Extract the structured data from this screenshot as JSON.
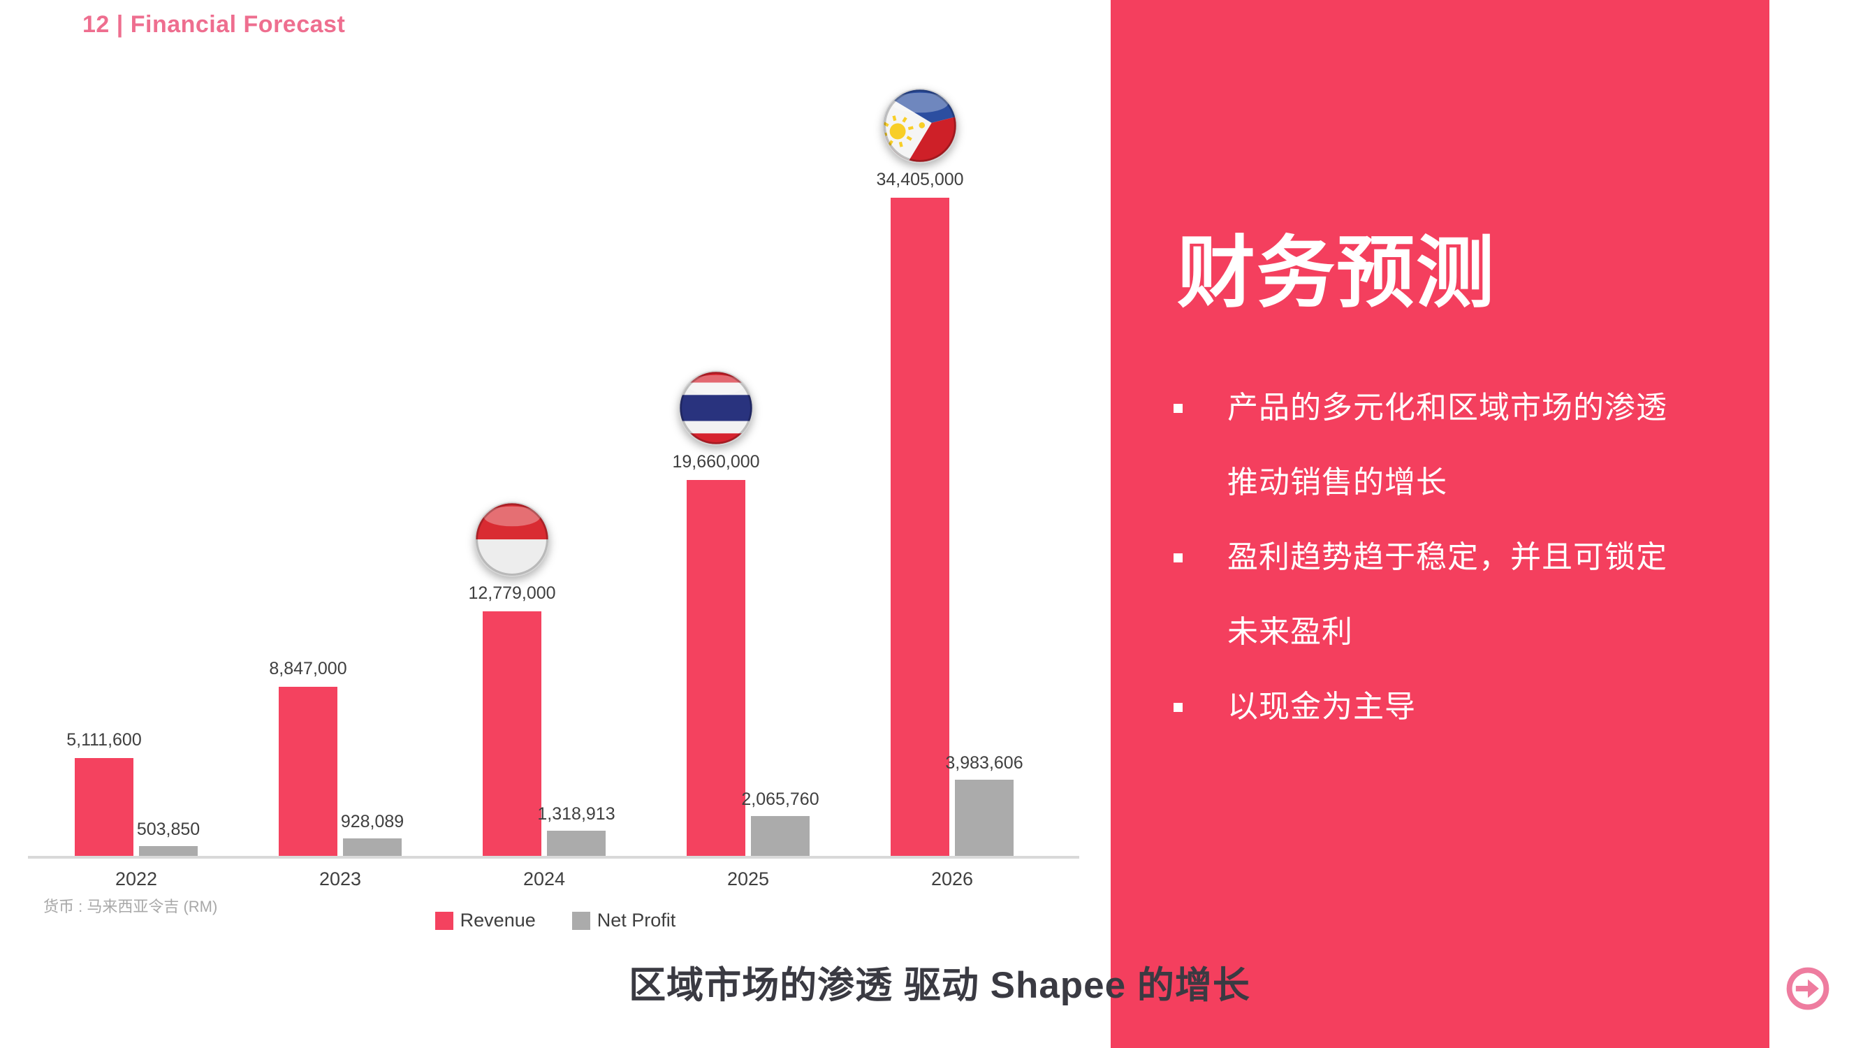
{
  "header": {
    "label": "12 | Financial Forecast",
    "color": "#ee6e8f"
  },
  "chart_data": {
    "type": "bar",
    "title": "",
    "categories": [
      "2022",
      "2023",
      "2024",
      "2025",
      "2026"
    ],
    "series": [
      {
        "name": "Revenue",
        "color": "#f4425f",
        "values": [
          5111600,
          8847000,
          12779000,
          19660000,
          34405000
        ],
        "labels": [
          "5,111,600",
          "8,847,000",
          "12,779,000",
          "19,660,000",
          "34,405,000"
        ]
      },
      {
        "name": "Net Profit",
        "color": "#ababab",
        "values": [
          503850,
          928089,
          1318913,
          2065760,
          3983606
        ],
        "labels": [
          "503,850",
          "928,089",
          "1,318,913",
          "2,065,760",
          "3,983,606"
        ]
      }
    ],
    "flags": [
      null,
      null,
      "indonesia",
      "thailand",
      "philippines"
    ],
    "flag_names": {
      "indonesia": "indonesia-flag-icon",
      "thailand": "thailand-flag-icon",
      "philippines": "philippines-flag-icon"
    },
    "ylim": [
      0,
      34405000
    ],
    "grid": false,
    "legend_position": "bottom",
    "note": "货币 : 马来西亚令吉 (RM)"
  },
  "panel": {
    "background": "#f43f5e",
    "title": "财务预测",
    "bullets": [
      {
        "lines": [
          "产品的多元化和区域市场的渗透",
          "推动销售的增长"
        ]
      },
      {
        "lines": [
          "盈利趋势趋于稳定，并且可锁定",
          "未来盈利"
        ]
      },
      {
        "lines": [
          "以现金为主导"
        ]
      }
    ]
  },
  "caption": {
    "text": "区域市场的渗透 驱动 Shapee 的增长"
  },
  "nav": {
    "next_icon": "arrow-right-circle",
    "color": "#ee7c9f"
  }
}
